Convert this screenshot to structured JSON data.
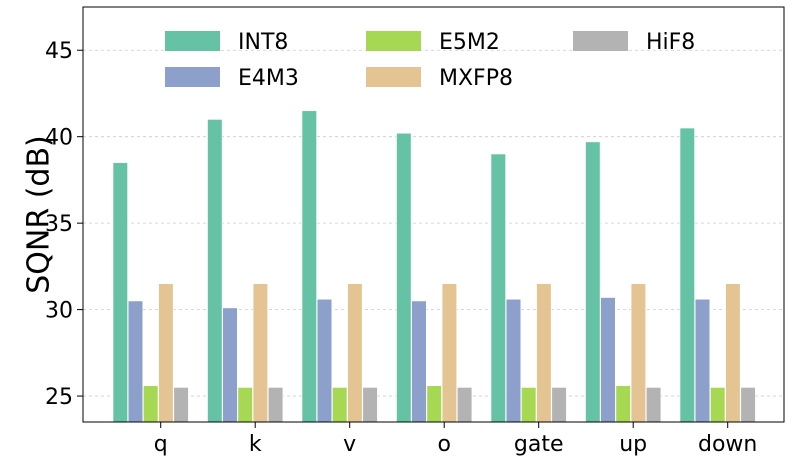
{
  "chart_data": {
    "type": "bar",
    "title": "",
    "xlabel": "",
    "ylabel": "SQNR (dB)",
    "ylim": [
      23.5,
      47.5
    ],
    "yticks": [
      25,
      30,
      35,
      40,
      45
    ],
    "grid": true,
    "legend_position": "top",
    "categories": [
      "q",
      "k",
      "v",
      "o",
      "gate",
      "up",
      "down"
    ],
    "series": [
      {
        "name": "INT8",
        "color": "#66c2a5",
        "values": [
          38.5,
          41.0,
          41.5,
          40.2,
          39.0,
          39.7,
          40.5
        ]
      },
      {
        "name": "E4M3",
        "color": "#8da0cb",
        "values": [
          30.5,
          30.1,
          30.6,
          30.5,
          30.6,
          30.7,
          30.6
        ]
      },
      {
        "name": "E5M2",
        "color": "#a6d854",
        "values": [
          25.6,
          25.5,
          25.5,
          25.6,
          25.5,
          25.6,
          25.5
        ]
      },
      {
        "name": "MXFP8",
        "color": "#e5c494",
        "values": [
          31.5,
          31.5,
          31.5,
          31.5,
          31.5,
          31.5,
          31.5
        ]
      },
      {
        "name": "HiF8",
        "color": "#b3b3b3",
        "values": [
          25.5,
          25.5,
          25.5,
          25.5,
          25.5,
          25.5,
          25.5
        ]
      }
    ]
  }
}
